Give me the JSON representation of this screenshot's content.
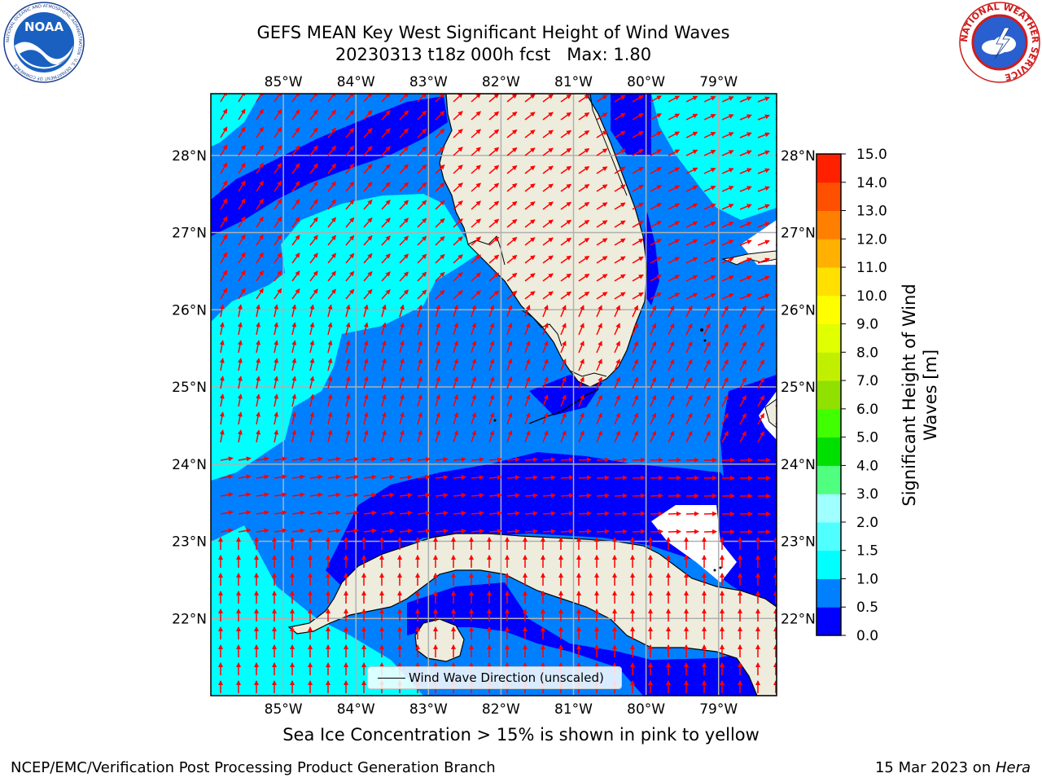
{
  "title": {
    "line1": "GEFS MEAN Key West Significant Height of Wind Waves",
    "line2": "20230313 t18z 000h fcst   Max: 1.80"
  },
  "map": {
    "lon_labels": [
      "85°W",
      "84°W",
      "83°W",
      "82°W",
      "81°W",
      "80°W",
      "79°W"
    ],
    "lat_labels": [
      "28°N",
      "27°N",
      "26°N",
      "25°N",
      "24°N",
      "23°N",
      "22°N"
    ],
    "legend": "Wind Wave Direction (unscaled)",
    "colors": {
      "land": "#eeecdc",
      "shelf_cyan": "#00ffff",
      "mid_blue": "#0080ff",
      "deep_blue": "#0000ff",
      "arrow": "#ff0000",
      "grid": "#b0b0b0"
    },
    "region_lon": [
      -86.0,
      -78.2
    ],
    "region_lat": [
      21.0,
      28.8
    ]
  },
  "colorbar": {
    "label": "Significant Height of Wind Waves [m]",
    "ticks": [
      "0.0",
      "0.5",
      "1.0",
      "1.5",
      "2.0",
      "3.0",
      "4.0",
      "5.0",
      "6.0",
      "7.0",
      "8.0",
      "9.0",
      "10.0",
      "11.0",
      "12.0",
      "13.0",
      "14.0",
      "15.0"
    ],
    "colors": [
      "#0000ff",
      "#0080ff",
      "#00ffff",
      "#50ffff",
      "#a0ffff",
      "#50ff80",
      "#00e000",
      "#40ff00",
      "#90e000",
      "#c0f000",
      "#e0ff00",
      "#ffff00",
      "#ffe000",
      "#ffb000",
      "#ff8000",
      "#ff5000",
      "#ff2000"
    ]
  },
  "caption": "Sea Ice Concentration > 15% is shown in pink to yellow",
  "footer": {
    "left": "NCEP/EMC/Verification Post Processing Product Generation Branch",
    "right_prefix": "15 Mar 2023 on ",
    "right_machine": "Hera"
  },
  "logos": {
    "noaa": "NOAA",
    "noaa_ring": "NATIONAL OCEANIC AND ATMOSPHERIC ADMINISTRATION · U.S. DEPARTMENT OF COMMERCE",
    "nws_ring": "NATIONAL WEATHER SERVICE"
  }
}
